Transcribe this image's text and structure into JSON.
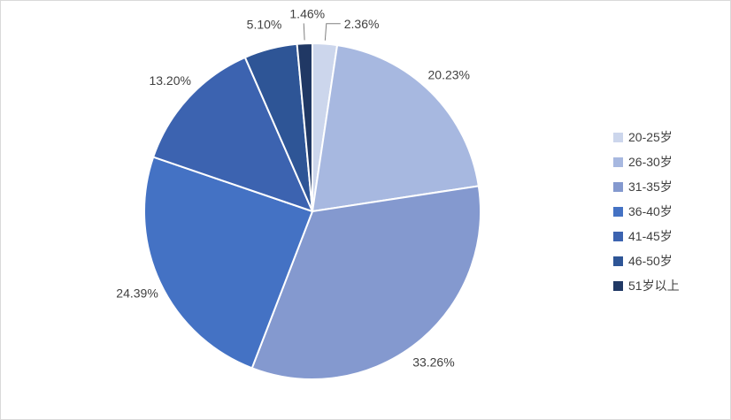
{
  "chart_data": {
    "type": "pie",
    "title": "",
    "categories": [
      "20-25岁",
      "26-30岁",
      "31-35岁",
      "36-40岁",
      "41-45岁",
      "46-50岁",
      "51岁以上"
    ],
    "values": [
      2.36,
      20.23,
      33.26,
      24.39,
      13.2,
      5.1,
      1.46
    ],
    "data_labels": [
      "2.36%",
      "20.23%",
      "33.26%",
      "24.39%",
      "13.20%",
      "5.10%",
      "1.46%"
    ],
    "colors": [
      "#ccd6ec",
      "#a7b8e0",
      "#8499cf",
      "#4472c4",
      "#3c63b0",
      "#2e5596",
      "#203864"
    ],
    "legend_position": "right",
    "start_angle_deg": 0,
    "direction": "clockwise",
    "slice_border_color": "#ffffff",
    "label_color": "#404040",
    "leader_line_color": "#808080"
  }
}
